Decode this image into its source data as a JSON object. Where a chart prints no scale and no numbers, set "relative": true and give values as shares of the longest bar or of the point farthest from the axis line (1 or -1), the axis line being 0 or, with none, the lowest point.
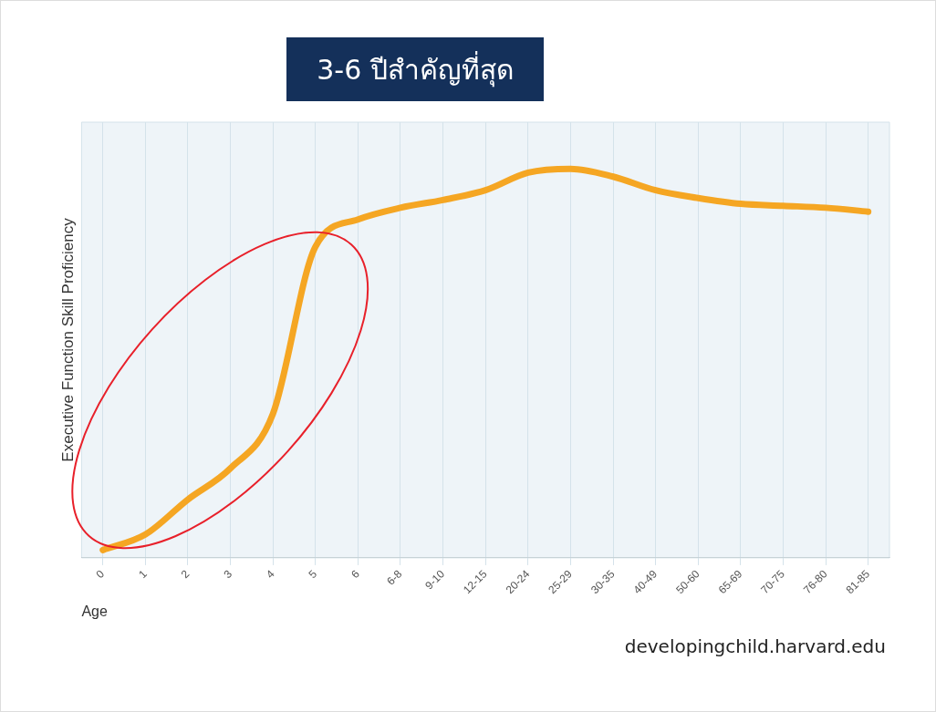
{
  "chart_data": {
    "type": "line",
    "title": "3-6 ปีสำคัญที่สุด",
    "xlabel": "Age",
    "ylabel": "Executive Function Skill Proficiency",
    "relative": true,
    "categories": [
      "0",
      "1",
      "2",
      "3",
      "4",
      "5",
      "6",
      "6-8",
      "9-10",
      "12-15",
      "20-24",
      "25-29",
      "30-35",
      "40-49",
      "50-60",
      "65-69",
      "70-75",
      "76-80",
      "81-85"
    ],
    "series": [
      {
        "color": "#f5a623",
        "values": [
          0.02,
          0.06,
          0.15,
          0.23,
          0.37,
          0.8,
          0.87,
          0.9,
          0.92,
          0.945,
          0.99,
          1,
          0.98,
          0.945,
          0.925,
          0.91,
          0.905,
          0.9,
          0.89
        ]
      }
    ],
    "grid": "x",
    "legend": false,
    "marker": "none",
    "line_style": "solid",
    "annotations": [
      "developingchild.harvard.edu"
    ]
  }
}
